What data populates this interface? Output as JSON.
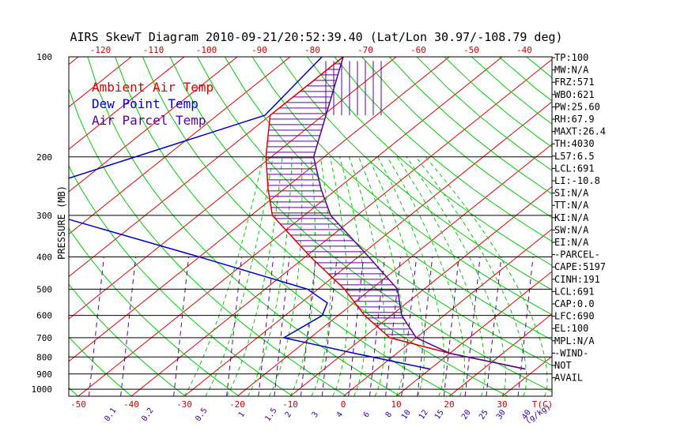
{
  "chart_data": {
    "type": "skewt",
    "title": "AIRS SkewT Diagram 2010-09-21/20:52:39.40 (Lat/Lon 30.97/-108.79 deg)",
    "ylabel": "PRESSURE (MB)",
    "xlabel": "T(C)",
    "mixing_ratio_label": "(g/kg)",
    "top_axis_labels": [
      "-120",
      "-110",
      "-100",
      "-90",
      "-80",
      "-70",
      "-60",
      "-50",
      "-40"
    ],
    "bottom_axis_labels": [
      "-50",
      "-40",
      "-30",
      "-20",
      "-10",
      "0",
      "10",
      "20",
      "30"
    ],
    "pressure_levels": [
      100,
      200,
      300,
      400,
      500,
      600,
      700,
      800,
      900,
      1000
    ],
    "mixing_ratio_values": [
      "0.1",
      "0.2",
      "0.5",
      "1",
      "1.5",
      "2",
      "3",
      "4",
      "6",
      "8",
      "10",
      "12",
      "15",
      "20",
      "25",
      "30",
      "40"
    ],
    "legend": [
      {
        "label": "Ambient Air Temp",
        "color": "#dd0000"
      },
      {
        "label": "Dew Point Temp",
        "color": "#0000cc"
      },
      {
        "label": "Air Parcel Temp",
        "color": "#5a0099"
      }
    ],
    "ambient_temp": {
      "pressure": [
        100,
        150,
        200,
        250,
        300,
        400,
        500,
        600,
        700,
        780,
        870
      ],
      "temp": [
        -80,
        -80,
        -71,
        -63,
        -56,
        -39,
        -25,
        -15,
        -5,
        10,
        28
      ]
    },
    "dew_point": {
      "pressure": [
        100,
        150,
        250,
        300,
        400,
        500,
        550,
        600,
        700,
        780,
        870
      ],
      "temp": [
        -84,
        -81,
        -107,
        -97,
        -60,
        -32,
        -25,
        -23,
        -25,
        -8,
        10
      ]
    },
    "parcel_temp": {
      "pressure": [
        100,
        200,
        250,
        300,
        400,
        500,
        600,
        700,
        780,
        870
      ],
      "temp": [
        -80,
        -62,
        -53,
        -45,
        -28,
        -15,
        -8,
        0,
        10,
        28
      ]
    }
  },
  "side_panel": [
    "TP:100",
    "MW:N/A",
    "FRZ:571",
    "WBO:621",
    "PW:25.60",
    "RH:67.9",
    "MAXT:26.4",
    "TH:4030",
    "L57:6.5",
    "LCL:691",
    "LI:-10.8",
    "SI:N/A",
    "TT:N/A",
    "KI:N/A",
    "SW:N/A",
    "EI:N/A",
    "-PARCEL-",
    "CAPE:5197",
    "CINH:191",
    "LCL:691",
    "CAP:0.0",
    "LFC:690",
    "EL:100",
    "MPL:N/A",
    "-WIND-",
    "NOT",
    "AVAIL"
  ],
  "colors": {
    "isotherm": "#dd0000",
    "dry_adiabat": "#00cc00",
    "moist_adiabat": "#00cc00",
    "mixing_ratio": "#5a0099",
    "isobar": "#000000",
    "ambient": "#dd0000",
    "dewpoint": "#0000cc",
    "parcel": "#5a0099",
    "hatch": "#5a0099"
  }
}
